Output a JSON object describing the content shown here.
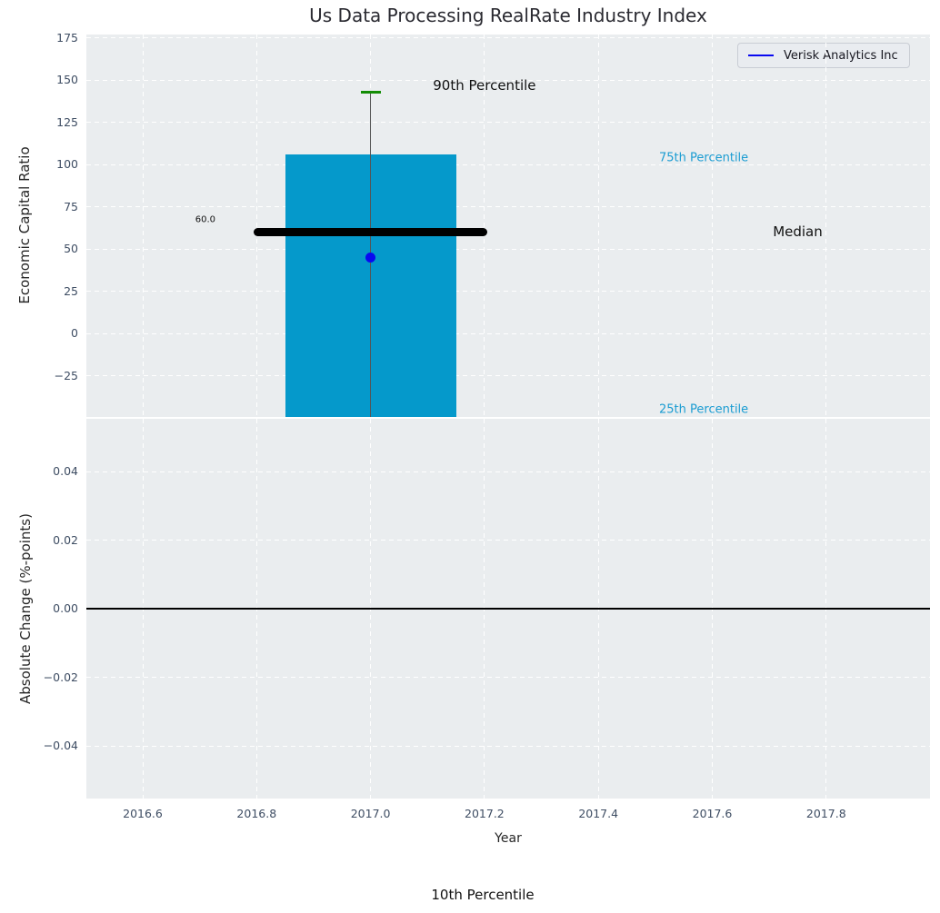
{
  "colors": {
    "figure_background": "#ffffff",
    "axes_background": "#eaedef",
    "grid": "#ffffff",
    "bar": "#0599cb",
    "median_line": "#000000",
    "whisker": "#555555",
    "whisker_cap_green": "#128c04",
    "company_point_blue": "#0909f0",
    "percentile_label_cyan": "#1a9cd2",
    "tick_label": "#3e4d63",
    "zero_line": "#000000"
  },
  "chart_data": [
    {
      "type": "bar",
      "panel": "top",
      "title": "Us Data Processing RealRate Industry Index",
      "ylabel": "Economic Capital Ratio",
      "ylim": [
        -49.5,
        177
      ],
      "yticks": [
        175,
        150,
        125,
        100,
        75,
        50,
        25,
        0,
        -25
      ],
      "ytick_labels": [
        "175",
        "150",
        "125",
        "100",
        "75",
        "50",
        "25",
        "0",
        "−25"
      ],
      "xlim": [
        2016.5,
        2017.98
      ],
      "grid": true,
      "legend": {
        "position": "upper right",
        "entries": [
          "Verisk Analytics Inc"
        ]
      },
      "percentiles": {
        "p90": 143,
        "p75_bar_top": 106,
        "median": 60.0,
        "p25": "below visible axis (bar clipped at bottom)",
        "p10": "below visible axis"
      },
      "series": [
        {
          "name": "industry-percentile-bar",
          "type": "bar",
          "x": [
            2017.0
          ],
          "bar_width": 0.3,
          "top": [
            106
          ],
          "bottom": [
            "clipped at axis bottom"
          ],
          "color": "#0599cb"
        },
        {
          "name": "median-line",
          "type": "line",
          "x": [
            2016.795,
            2017.205
          ],
          "y": [
            60.0,
            60.0
          ],
          "color": "#000000"
        },
        {
          "name": "p90-whisker",
          "type": "line",
          "x": [
            2017.0,
            2017.0
          ],
          "y_top_cap": 143,
          "cap_color": "#128c04",
          "line_color": "#555555"
        },
        {
          "name": "Verisk Analytics Inc",
          "type": "scatter",
          "x": [
            2017.0
          ],
          "y": [
            45
          ],
          "color": "#0909f0"
        }
      ],
      "annotations": [
        {
          "text": "90th Percentile",
          "x": 2017.2,
          "y": 147,
          "color": "#111111"
        },
        {
          "text": "75th Percentile",
          "x": 2017.585,
          "y": 104,
          "color": "#1a9cd2"
        },
        {
          "text": "60.0",
          "x": 2016.71,
          "y": 67,
          "color": "#111111"
        },
        {
          "text": "Median",
          "x": 2017.75,
          "y": 60,
          "color": "#111111"
        },
        {
          "text": "25th Percentile",
          "x": 2017.585,
          "y": -45,
          "color": "#1a9cd2"
        },
        {
          "text": "10th Percentile",
          "x": 2017.2,
          "y": null,
          "color": "#111111",
          "note": "rendered below the figure axes"
        }
      ]
    },
    {
      "type": "line",
      "panel": "bottom",
      "ylabel": "Absolute Change (%-points)",
      "xlabel": "Year",
      "ylim": [
        -0.055,
        0.055
      ],
      "yticks": [
        0.04,
        0.02,
        0.0,
        -0.02,
        -0.04
      ],
      "ytick_labels": [
        "0.04",
        "0.02",
        "0.00",
        "−0.02",
        "−0.04"
      ],
      "xticks": [
        2016.6,
        2016.8,
        2017.0,
        2017.2,
        2017.4,
        2017.6,
        2017.8
      ],
      "xtick_labels": [
        "2016.6",
        "2016.8",
        "2017.0",
        "2017.2",
        "2017.4",
        "2017.6",
        "2017.8"
      ],
      "grid": true,
      "zero_line": 0.0,
      "series": []
    }
  ]
}
